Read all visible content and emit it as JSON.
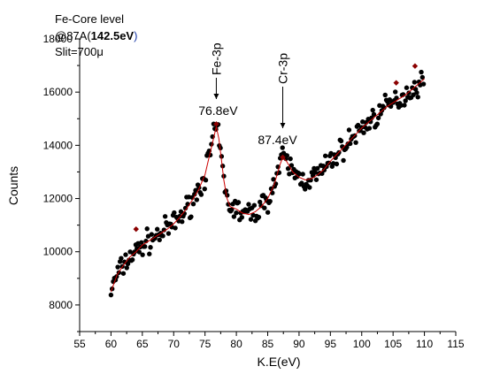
{
  "chart_data": {
    "type": "scatter",
    "xlabel": "K.E(eV)",
    "ylabel": "Counts",
    "xlim": [
      55,
      115
    ],
    "ylim": [
      7000,
      18000
    ],
    "xticks": [
      55,
      60,
      65,
      70,
      75,
      80,
      85,
      90,
      95,
      100,
      105,
      110,
      115
    ],
    "yticks": [
      8000,
      10000,
      12000,
      14000,
      16000,
      18000
    ],
    "grid": false,
    "info": {
      "line1": "Fe-Core level",
      "line2_prefix": "@87A(",
      "line2_bold": "142.5eV",
      "line2_suffix": ")",
      "line3": "Slit=700μ"
    },
    "colors": {
      "points": "#000000",
      "fit": "#cc0000",
      "highlight": "#8b0000",
      "info_accent": "#1a3aa8"
    },
    "annotations": [
      {
        "label": "Fe-3p",
        "x": 76.8,
        "orient": "vertical"
      },
      {
        "label": "76.8eV",
        "x": 76.8,
        "orient": "horizontal"
      },
      {
        "label": "Cr-3p",
        "x": 87.4,
        "orient": "vertical"
      },
      {
        "label": "87.4eV",
        "x": 87.4,
        "orient": "horizontal"
      }
    ],
    "series": [
      {
        "type": "fit_line",
        "x": [
          60,
          61,
          62,
          63,
          64,
          65,
          66,
          67,
          68,
          69,
          70,
          71,
          72,
          73,
          74,
          75,
          75.5,
          76,
          76.5,
          76.8,
          77.2,
          77.6,
          78,
          78.5,
          79,
          80,
          81,
          82,
          83,
          84,
          85,
          86,
          86.5,
          87,
          87.4,
          88,
          89,
          90,
          91,
          92,
          93,
          94,
          95,
          96,
          97,
          98,
          99,
          100,
          101,
          102,
          103,
          104,
          105,
          106,
          107,
          108,
          109,
          110
        ],
        "y": [
          8500,
          9150,
          9500,
          9800,
          10000,
          10250,
          10400,
          10550,
          10700,
          10850,
          11050,
          11300,
          11600,
          11950,
          12350,
          12900,
          13400,
          13900,
          14400,
          14700,
          14250,
          13500,
          12700,
          12000,
          11700,
          11600,
          11450,
          11400,
          11500,
          11700,
          12000,
          12500,
          12900,
          13300,
          13550,
          13400,
          13000,
          12800,
          12700,
          12750,
          12900,
          13100,
          13400,
          13650,
          13900,
          14150,
          14400,
          14650,
          14850,
          15050,
          15250,
          15450,
          15600,
          15750,
          15900,
          16100,
          16300,
          16500
        ]
      },
      {
        "type": "highlight_points",
        "x": [
          64,
          76.8,
          87.4,
          105.5,
          108.5
        ],
        "y": [
          10850,
          14800,
          13550,
          16350,
          16980
        ]
      }
    ]
  }
}
